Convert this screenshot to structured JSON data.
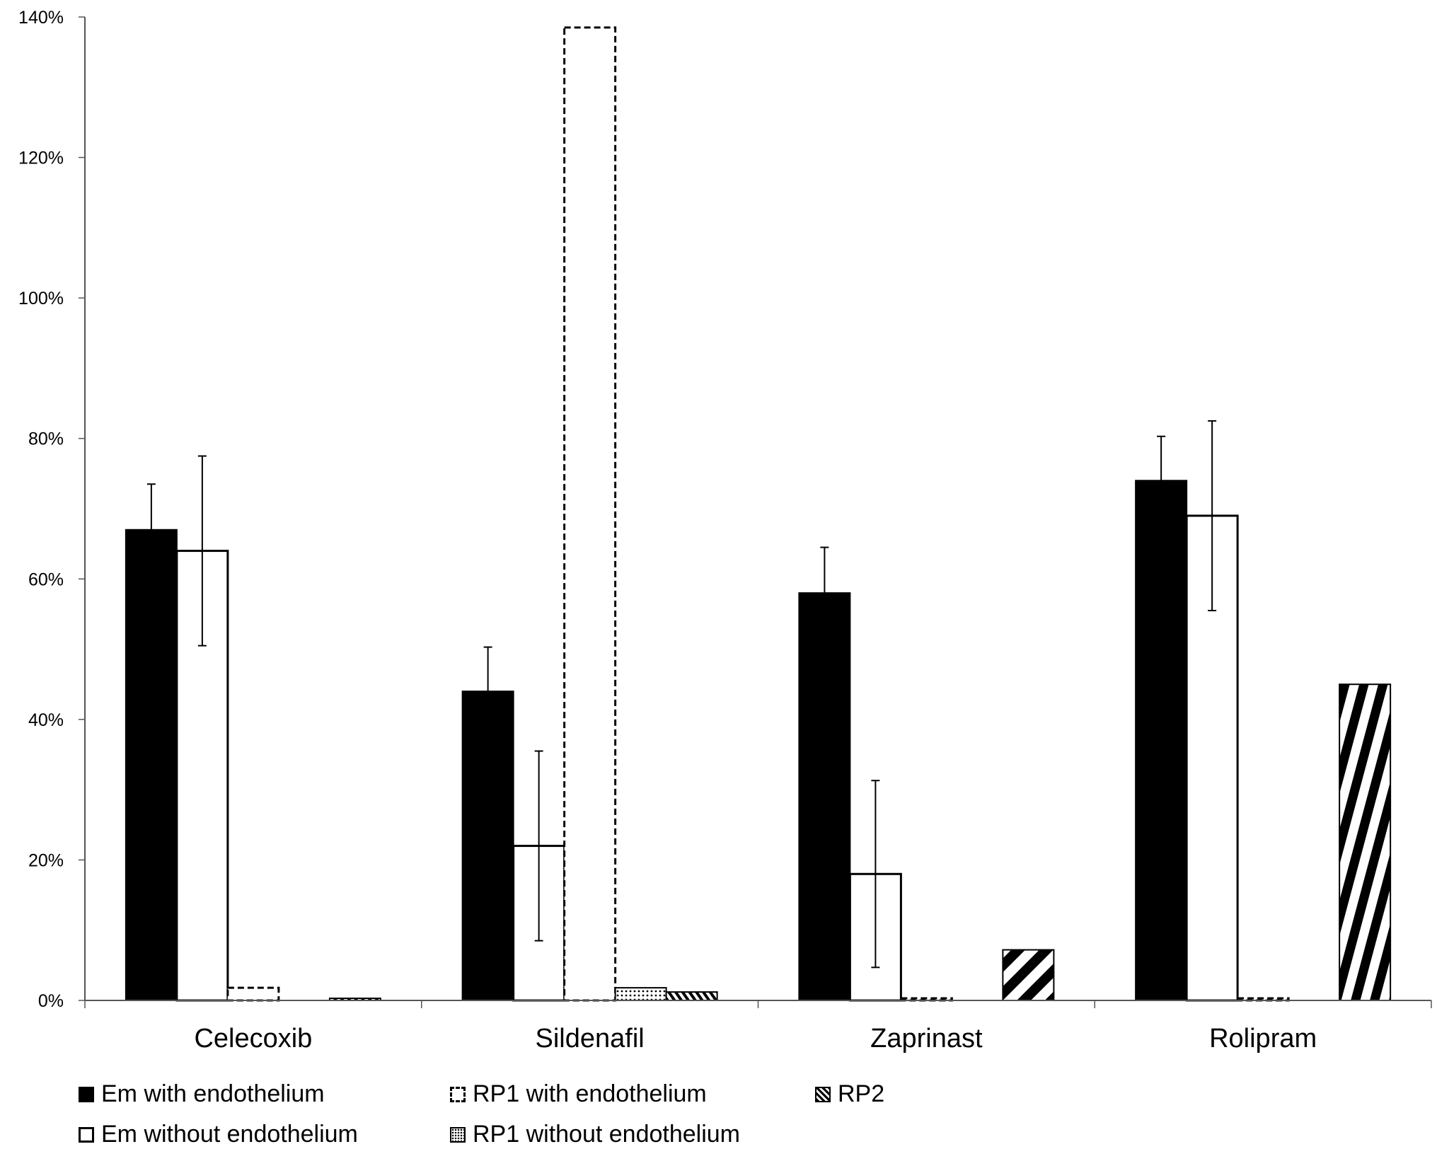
{
  "chart_data": {
    "type": "bar",
    "title": "",
    "xlabel": "",
    "ylabel": "",
    "ylim": [
      0,
      140
    ],
    "yticks": [
      0,
      20,
      40,
      60,
      80,
      100,
      120,
      140
    ],
    "ytick_labels": [
      "0%",
      "20%",
      "40%",
      "60%",
      "80%",
      "100%",
      "120%",
      "140%"
    ],
    "categories": [
      "Celecoxib",
      "Sildenafil",
      "Zaprinast",
      "Rolipram"
    ],
    "series": [
      {
        "name": "Em with endothelium",
        "style": "solid-black",
        "values": [
          67,
          44,
          58,
          74
        ],
        "errors": [
          6.5,
          6.3,
          6.5,
          6.3
        ]
      },
      {
        "name": "Em without endothelium",
        "style": "white",
        "values": [
          64,
          22,
          18,
          69
        ],
        "errors": [
          13.5,
          13.5,
          13.3,
          13.5
        ]
      },
      {
        "name": "RP1 with endothelium",
        "style": "dashed",
        "values": [
          1.8,
          138.5,
          0.3,
          0.3
        ],
        "errors": null
      },
      {
        "name": "RP1 without endothelium",
        "style": "dotted",
        "values": [
          0,
          1.8,
          0,
          0
        ],
        "errors": null
      },
      {
        "name": "RP2",
        "style": "hatched",
        "values": [
          0.3,
          1.2,
          7.2,
          45
        ],
        "errors": null
      }
    ],
    "legend_position": "bottom",
    "grid": false
  }
}
